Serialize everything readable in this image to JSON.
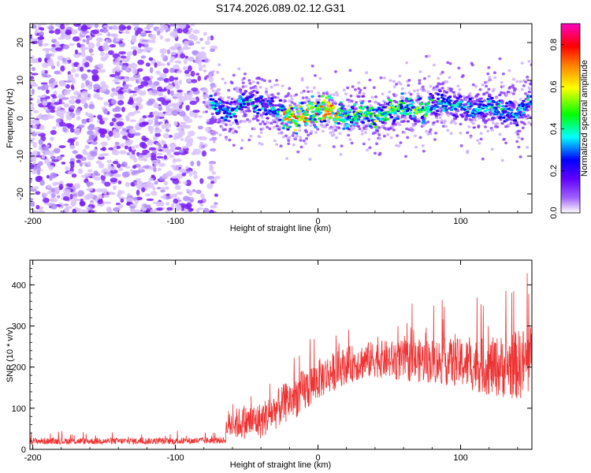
{
  "title": "S174.2026.089.02.12.G31",
  "chart_data": [
    {
      "type": "heatmap",
      "title": "S174.2026.089.02.12.G31",
      "xlabel": "Height of straight line (km)",
      "ylabel": "Frequency (Hz)",
      "xlim": [
        -202,
        150
      ],
      "ylim": [
        -25,
        25
      ],
      "xticks": [
        -200,
        -100,
        0,
        100
      ],
      "yticks": [
        -20,
        -10,
        0,
        10,
        20
      ],
      "colorbar": {
        "label": "Normalized spectral amplitude",
        "range": [
          0,
          0.9
        ],
        "ticks": [
          "0.0",
          "0.2",
          "0.4",
          "0.6",
          "0.8"
        ],
        "tick_values": [
          0,
          0.2,
          0.4,
          0.6,
          0.8
        ],
        "colormap": [
          "#ffffff",
          "#8000ff",
          "#0000ff",
          "#00ffff",
          "#00ff00",
          "#ffff00",
          "#ff8000",
          "#ff0000",
          "#ff00c0"
        ]
      },
      "description_series": {
        "noise_region_x": [
          -202,
          -75
        ],
        "signal_track_x": [
          -80,
          150
        ],
        "signal_track_frequency": [
          [
            -80,
            4
          ],
          [
            -70,
            3
          ],
          [
            -60,
            1
          ],
          [
            -50,
            5
          ],
          [
            -40,
            3
          ],
          [
            -30,
            2
          ],
          [
            -20,
            0
          ],
          [
            -10,
            1
          ],
          [
            0,
            2
          ],
          [
            10,
            2
          ],
          [
            20,
            0
          ],
          [
            30,
            2
          ],
          [
            40,
            0
          ],
          [
            50,
            2
          ],
          [
            60,
            3
          ],
          [
            70,
            2
          ],
          [
            80,
            3
          ],
          [
            90,
            4
          ],
          [
            100,
            3
          ],
          [
            110,
            2
          ],
          [
            120,
            3
          ],
          [
            130,
            2
          ],
          [
            140,
            1
          ],
          [
            150,
            5
          ]
        ]
      }
    },
    {
      "type": "line",
      "xlabel": "Height of straight line (km)",
      "ylabel": "SNR (10 * v/v)",
      "xlim": [
        -202,
        150
      ],
      "ylim": [
        0,
        460
      ],
      "xticks": [
        -200,
        -100,
        0,
        100
      ],
      "yticks": [
        0,
        100,
        200,
        300,
        400
      ],
      "series": [
        {
          "name": "SNR",
          "color": "#ee3333",
          "envelope_x": [
            -202,
            -150,
            -100,
            -65,
            -64,
            -40,
            -20,
            -10,
            0,
            20,
            40,
            60,
            80,
            100,
            120,
            140,
            150
          ],
          "envelope_mean": [
            20,
            20,
            20,
            22,
            60,
            70,
            120,
            140,
            170,
            205,
            220,
            215,
            215,
            210,
            200,
            205,
            215
          ],
          "envelope_spread": [
            8,
            8,
            8,
            8,
            35,
            45,
            50,
            55,
            50,
            45,
            45,
            50,
            55,
            60,
            70,
            85,
            90
          ]
        }
      ]
    }
  ]
}
